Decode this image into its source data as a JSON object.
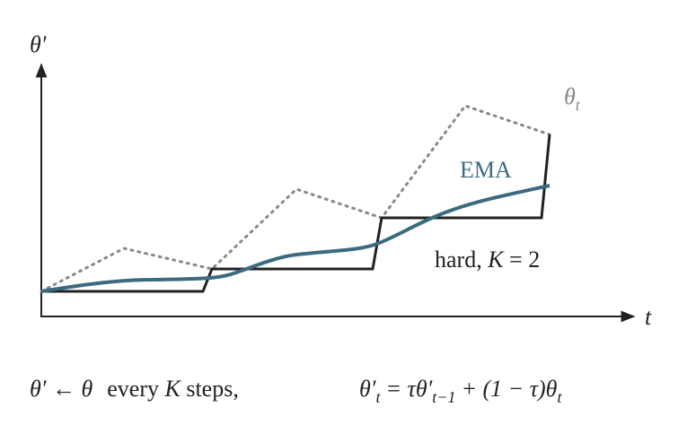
{
  "axes": {
    "y_label": "θ′",
    "x_label": "t"
  },
  "curves": {
    "target": {
      "symbol": "θ",
      "subscript": "t"
    },
    "ema": {
      "label": "EMA"
    },
    "hard": {
      "label": "hard,",
      "k_symbol": "K",
      "k_value": "= 2"
    }
  },
  "formulas": {
    "hard": {
      "parts": [
        "θ′ ← θ",
        "every",
        "K",
        "steps,"
      ]
    },
    "ema": {
      "parts": [
        "θ′",
        "t",
        "= τθ′",
        "t−1",
        "+ (1 − τ)θ",
        "t"
      ]
    }
  }
}
